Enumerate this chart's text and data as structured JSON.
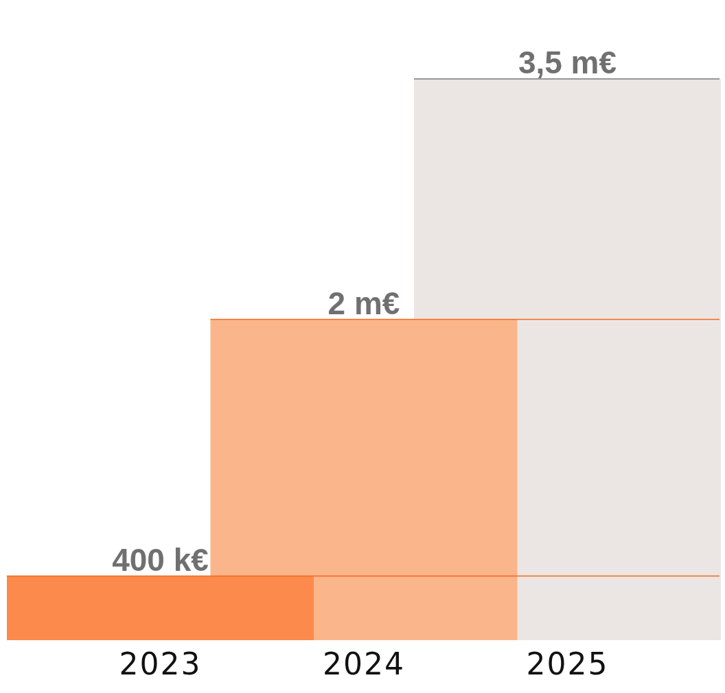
{
  "chart_data": {
    "type": "bar",
    "categories": [
      "2023",
      "2024",
      "2025"
    ],
    "values": [
      0.4,
      2,
      3.5
    ],
    "value_labels": [
      "400 k€",
      "2 m€",
      "3,5 m€"
    ],
    "colors": [
      "#fb8a4c",
      "#fbb58a",
      "#ebe6e3"
    ],
    "ref_lines": [
      {
        "axis": "y",
        "value": 0.4,
        "color": "#f26a1b"
      },
      {
        "axis": "y",
        "value": 2,
        "color": "#f26a1b"
      },
      {
        "axis": "y",
        "value": 3.5,
        "color": "#777777"
      }
    ]
  }
}
